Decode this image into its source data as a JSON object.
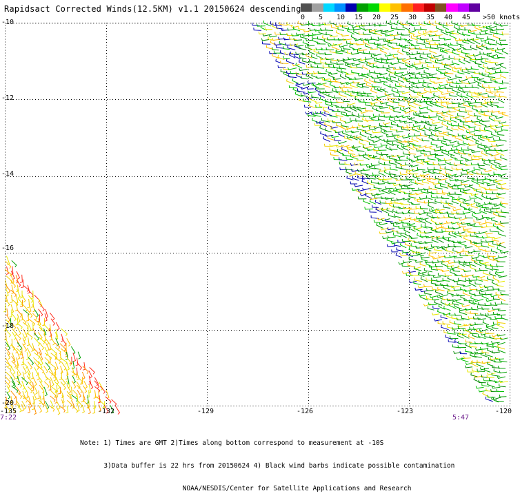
{
  "title": "Rapidsact Corrected Winds(12.5KM) v1.1 20150624 descending",
  "legend": {
    "labels": [
      "0",
      "5",
      "10",
      "15",
      "20",
      "25",
      "30",
      "35",
      "40",
      "45"
    ],
    "overflow_label": ">50 knots",
    "colors": [
      "#505050",
      "#a0a0a0",
      "#00d8ff",
      "#0090ff",
      "#0000b0",
      "#00a000",
      "#00d800",
      "#ffff00",
      "#ffc000",
      "#ff7000",
      "#ff2020",
      "#c00000",
      "#805020",
      "#ff00ff",
      "#c000ff",
      "#6000a0"
    ]
  },
  "map": {
    "lat_labels": [
      "-10",
      "-12",
      "-14",
      "-16",
      "-18",
      "-20"
    ],
    "lon_labels": [
      "-135",
      "-132",
      "-129",
      "-126",
      "-123",
      "-120"
    ],
    "lat_range": [
      -10,
      -20
    ],
    "lon_range": [
      -135,
      -120
    ],
    "swath_right_colors": [
      "#00a000",
      "#00c000",
      "#008800",
      "#2a9d2a",
      "#e8e800",
      "#f0d000",
      "#0000b0",
      "#ffc000"
    ],
    "swath_left_colors": [
      "#f0d000",
      "#ffc000",
      "#ff9000",
      "#ff3020",
      "#e8e800",
      "#00a000"
    ]
  },
  "time_labels": {
    "left": "7:22",
    "right": "5:47"
  },
  "notes": [
    "Note: 1) Times are GMT 2)Times along bottom correspond to measurement at -10S",
    "      3)Data buffer is 22 hrs from 20150624 4) Black wind barbs indicate possible contamination",
    "                          NOAA/NESDIS/Center for Satellite Applications and Research"
  ]
}
